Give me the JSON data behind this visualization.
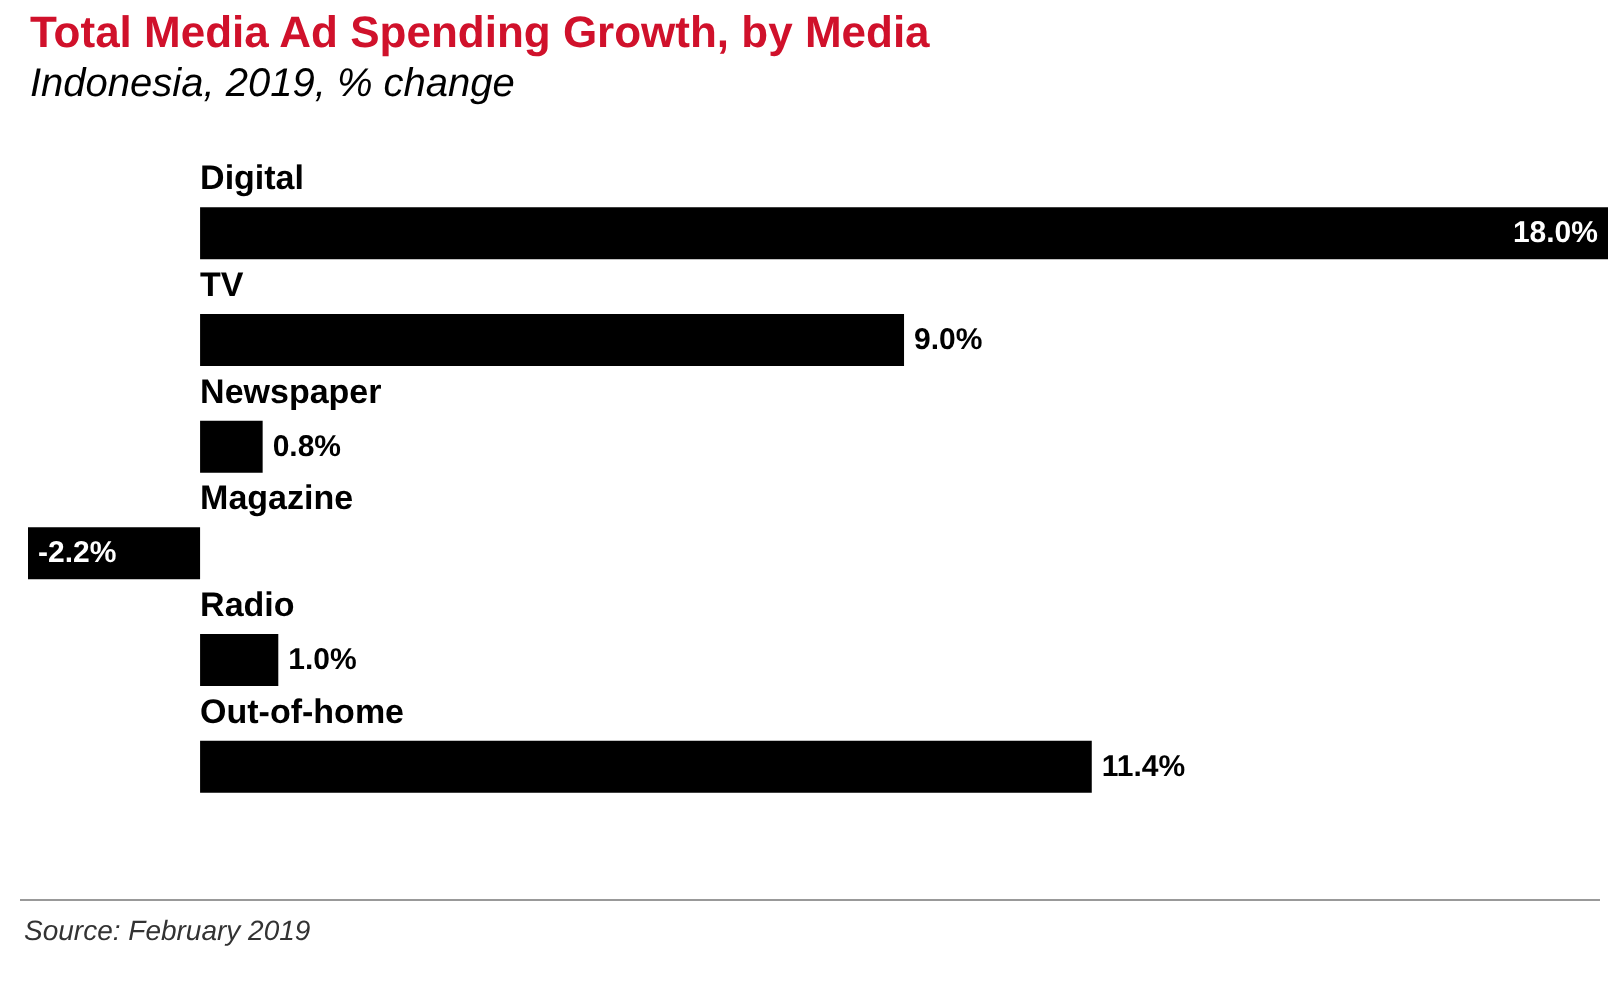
{
  "chart_data": {
    "type": "bar",
    "orientation": "horizontal",
    "tick_labels": false,
    "xlim": [
      -2.2,
      18
    ],
    "title": "Total Media Ad Spending Growth, by Media",
    "subtitle": "Indonesia, 2019, % change",
    "categories": [
      "Digital",
      "TV",
      "Newspaper",
      "Magazine",
      "Radio",
      "Out-of-home"
    ],
    "values": [
      18.0,
      9.0,
      0.8,
      -2.2,
      1.0,
      11.4
    ],
    "value_labels": [
      "18.0%",
      "9.0%",
      "0.8%",
      "-2.2%",
      "1.0%",
      "11.4%"
    ],
    "color": "#000000",
    "annotations": [
      "Source: February 2019"
    ]
  }
}
